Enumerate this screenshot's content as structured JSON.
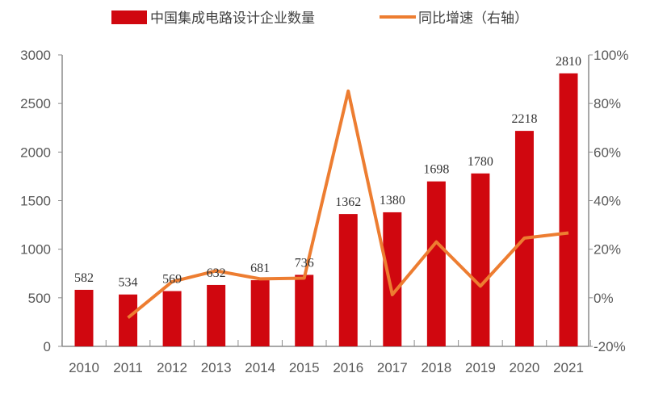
{
  "chart_data": {
    "type": "bar+line",
    "categories": [
      "2010",
      "2011",
      "2012",
      "2013",
      "2014",
      "2015",
      "2016",
      "2017",
      "2018",
      "2019",
      "2020",
      "2021"
    ],
    "series": [
      {
        "name": "中国集成电路设计企业数量",
        "type": "bar",
        "axis": "left",
        "color": "#d0070f",
        "values": [
          582,
          534,
          569,
          632,
          681,
          736,
          1362,
          1380,
          1698,
          1780,
          2218,
          2810
        ]
      },
      {
        "name": "同比增速（右轴）",
        "type": "line",
        "axis": "right",
        "color": "#ed7d31",
        "values": [
          null,
          -8.2,
          6.6,
          11.1,
          7.8,
          8.1,
          85.1,
          1.3,
          23.0,
          4.8,
          24.6,
          26.7
        ]
      }
    ],
    "y_left": {
      "range": [
        0,
        3000
      ],
      "ticks": [
        "0",
        "500",
        "1000",
        "1500",
        "2000",
        "2500",
        "3000"
      ]
    },
    "y_right": {
      "range": [
        -20,
        100
      ],
      "ticks": [
        "-20%",
        "0%",
        "20%",
        "40%",
        "60%",
        "80%",
        "100%"
      ]
    },
    "grid": false,
    "legend_position": "top"
  }
}
